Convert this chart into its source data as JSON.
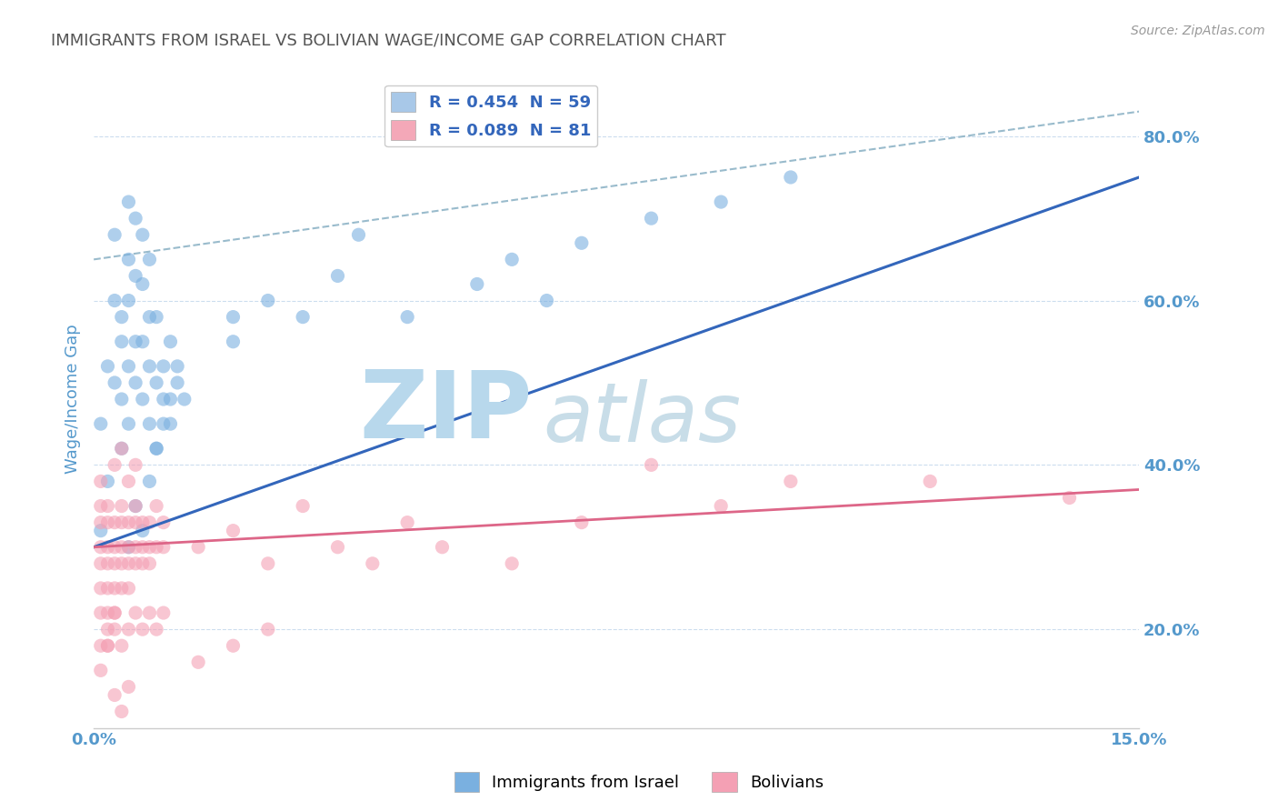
{
  "title": "IMMIGRANTS FROM ISRAEL VS BOLIVIAN WAGE/INCOME GAP CORRELATION CHART",
  "source_text": "Source: ZipAtlas.com",
  "ylabel": "Wage/Income Gap",
  "xlim": [
    0.0,
    0.15
  ],
  "ylim": [
    0.08,
    0.88
  ],
  "yticks": [
    0.2,
    0.4,
    0.6,
    0.8
  ],
  "ytick_labels": [
    "20.0%",
    "40.0%",
    "60.0%",
    "80.0%"
  ],
  "xticks": [
    0.0,
    0.025,
    0.05,
    0.075,
    0.1,
    0.125,
    0.15
  ],
  "xtick_labels": [
    "0.0%",
    "",
    "",
    "",
    "",
    "",
    "15.0%"
  ],
  "legend_items": [
    {
      "label": "R = 0.454  N = 59",
      "color": "#a8c8e8"
    },
    {
      "label": "R = 0.089  N = 81",
      "color": "#f4a8b8"
    }
  ],
  "watermark_zip": "ZIP",
  "watermark_atlas": "atlas",
  "watermark_color_zip": "#b8d8ec",
  "watermark_color_atlas": "#c8dde8",
  "title_color": "#555555",
  "axis_label_color": "#5599cc",
  "tick_label_color": "#5599cc",
  "grid_color": "#ccddee",
  "background_color": "#ffffff",
  "israel_scatter_x": [
    0.001,
    0.001,
    0.002,
    0.002,
    0.003,
    0.003,
    0.003,
    0.004,
    0.004,
    0.004,
    0.004,
    0.005,
    0.005,
    0.005,
    0.005,
    0.005,
    0.006,
    0.006,
    0.006,
    0.006,
    0.007,
    0.007,
    0.007,
    0.007,
    0.008,
    0.008,
    0.008,
    0.008,
    0.009,
    0.009,
    0.009,
    0.01,
    0.01,
    0.011,
    0.011,
    0.012,
    0.02,
    0.025,
    0.03,
    0.035,
    0.038,
    0.045,
    0.055,
    0.06,
    0.065,
    0.07,
    0.08,
    0.09,
    0.1,
    0.005,
    0.006,
    0.007,
    0.008,
    0.009,
    0.01,
    0.011,
    0.012,
    0.013,
    0.02
  ],
  "israel_scatter_y": [
    0.32,
    0.45,
    0.38,
    0.52,
    0.5,
    0.6,
    0.68,
    0.55,
    0.48,
    0.42,
    0.58,
    0.45,
    0.52,
    0.6,
    0.65,
    0.72,
    0.5,
    0.55,
    0.63,
    0.7,
    0.48,
    0.55,
    0.62,
    0.68,
    0.45,
    0.52,
    0.58,
    0.65,
    0.42,
    0.5,
    0.58,
    0.45,
    0.52,
    0.48,
    0.55,
    0.52,
    0.55,
    0.6,
    0.58,
    0.63,
    0.68,
    0.58,
    0.62,
    0.65,
    0.6,
    0.67,
    0.7,
    0.72,
    0.75,
    0.3,
    0.35,
    0.32,
    0.38,
    0.42,
    0.48,
    0.45,
    0.5,
    0.48,
    0.58
  ],
  "bolivian_scatter_x": [
    0.001,
    0.001,
    0.001,
    0.001,
    0.001,
    0.001,
    0.001,
    0.001,
    0.002,
    0.002,
    0.002,
    0.002,
    0.002,
    0.002,
    0.002,
    0.003,
    0.003,
    0.003,
    0.003,
    0.003,
    0.003,
    0.004,
    0.004,
    0.004,
    0.004,
    0.004,
    0.005,
    0.005,
    0.005,
    0.005,
    0.006,
    0.006,
    0.006,
    0.006,
    0.007,
    0.007,
    0.007,
    0.008,
    0.008,
    0.008,
    0.009,
    0.009,
    0.01,
    0.01,
    0.015,
    0.02,
    0.025,
    0.03,
    0.035,
    0.04,
    0.045,
    0.05,
    0.06,
    0.07,
    0.08,
    0.09,
    0.1,
    0.12,
    0.14,
    0.001,
    0.002,
    0.003,
    0.004,
    0.005,
    0.003,
    0.004,
    0.005,
    0.006,
    0.002,
    0.003,
    0.004,
    0.005,
    0.006,
    0.007,
    0.008,
    0.009,
    0.01,
    0.015,
    0.02,
    0.025
  ],
  "bolivian_scatter_y": [
    0.28,
    0.3,
    0.33,
    0.35,
    0.38,
    0.25,
    0.22,
    0.18,
    0.28,
    0.3,
    0.33,
    0.25,
    0.22,
    0.18,
    0.35,
    0.3,
    0.28,
    0.33,
    0.25,
    0.22,
    0.2,
    0.3,
    0.28,
    0.33,
    0.25,
    0.35,
    0.3,
    0.28,
    0.33,
    0.25,
    0.3,
    0.28,
    0.33,
    0.35,
    0.3,
    0.28,
    0.33,
    0.3,
    0.28,
    0.33,
    0.3,
    0.35,
    0.3,
    0.33,
    0.3,
    0.32,
    0.28,
    0.35,
    0.3,
    0.28,
    0.33,
    0.3,
    0.28,
    0.33,
    0.4,
    0.35,
    0.38,
    0.38,
    0.36,
    0.15,
    0.18,
    0.12,
    0.1,
    0.13,
    0.4,
    0.42,
    0.38,
    0.4,
    0.2,
    0.22,
    0.18,
    0.2,
    0.22,
    0.2,
    0.22,
    0.2,
    0.22,
    0.16,
    0.18,
    0.2
  ],
  "israel_color": "#7ab0e0",
  "bolivian_color": "#f4a0b4",
  "israel_line": {
    "x0": 0.0,
    "y0": 0.3,
    "x1": 0.15,
    "y1": 0.75,
    "color": "#3366bb",
    "lw": 2.2
  },
  "bolivian_line": {
    "x0": 0.0,
    "y0": 0.3,
    "x1": 0.15,
    "y1": 0.37,
    "color": "#dd6688",
    "lw": 2.0
  },
  "dashed_line": {
    "x0": 0.0,
    "y0": 0.65,
    "x1": 0.15,
    "y1": 0.83,
    "color": "#99bbcc",
    "lw": 1.5
  }
}
